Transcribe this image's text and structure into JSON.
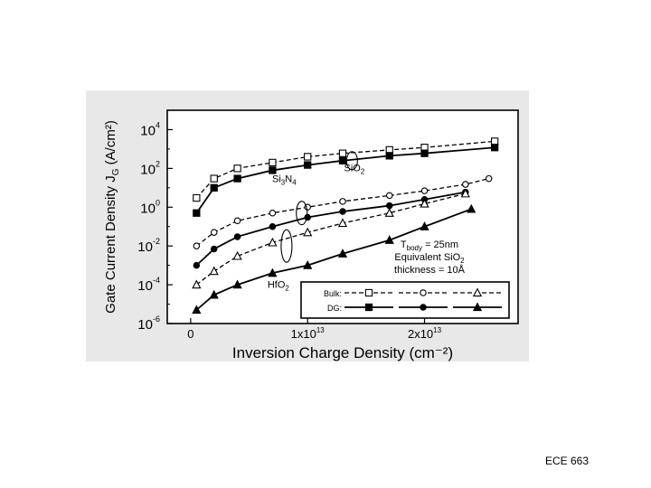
{
  "footer": {
    "text": "ECE 663"
  },
  "chart_data": {
    "type": "line",
    "xlabel": "Inversion Charge Density (cm⁻²)",
    "ylabel": "Gate Current Density J",
    "ylabel_sub": "G",
    "ylabel_unit": " (A/cm²)",
    "xlim": [
      -2000000000000.0,
      28000000000000.0
    ],
    "ylim_log10": [
      -6,
      5
    ],
    "xticks": [
      {
        "value": 0,
        "label": "0"
      },
      {
        "value": 10000000000000.0,
        "label": "1x10",
        "sup": "13"
      },
      {
        "value": 20000000000000.0,
        "label": "2x10",
        "sup": "13"
      }
    ],
    "yticks": [
      {
        "exp": 4,
        "label": "10",
        "sup": "4"
      },
      {
        "exp": 2,
        "label": "10",
        "sup": "2"
      },
      {
        "exp": 0,
        "label": "10",
        "sup": "0"
      },
      {
        "exp": -2,
        "label": "10",
        "sup": "-2"
      },
      {
        "exp": -4,
        "label": "10",
        "sup": "-4"
      },
      {
        "exp": -6,
        "label": "10",
        "sup": "-6"
      }
    ],
    "series": [
      {
        "name": "SiO2 Bulk",
        "marker": "square-open",
        "dash": true,
        "x": [
          500000000000.0,
          2000000000000.0,
          4000000000000.0,
          7000000000000.0,
          10000000000000.0,
          13000000000000.0,
          17000000000000.0,
          20000000000000.0,
          26000000000000.0
        ],
        "y": [
          3,
          30,
          100,
          200,
          400,
          600,
          900,
          1200,
          2500
        ]
      },
      {
        "name": "SiO2 DG",
        "marker": "square-filled",
        "dash": false,
        "x": [
          500000000000.0,
          2000000000000.0,
          4000000000000.0,
          7000000000000.0,
          10000000000000.0,
          13000000000000.0,
          17000000000000.0,
          20000000000000.0,
          26000000000000.0
        ],
        "y": [
          0.5,
          10,
          30,
          80,
          150,
          250,
          450,
          600,
          1200
        ]
      },
      {
        "name": "Si3N4 Bulk",
        "marker": "circle-open",
        "dash": true,
        "x": [
          500000000000.0,
          2000000000000.0,
          4000000000000.0,
          7000000000000.0,
          10000000000000.0,
          13000000000000.0,
          17000000000000.0,
          20000000000000.0,
          23500000000000.0,
          25500000000000.0
        ],
        "y": [
          0.01,
          0.05,
          0.2,
          0.5,
          1,
          2,
          4,
          7,
          15,
          30
        ]
      },
      {
        "name": "Si3N4 DG",
        "marker": "circle-filled",
        "dash": false,
        "x": [
          500000000000.0,
          2000000000000.0,
          4000000000000.0,
          7000000000000.0,
          10000000000000.0,
          13000000000000.0,
          17000000000000.0,
          20000000000000.0,
          23500000000000.0
        ],
        "y": [
          0.001,
          0.007,
          0.03,
          0.1,
          0.3,
          0.6,
          1.2,
          2.5,
          6
        ]
      },
      {
        "name": "HfO2 Bulk",
        "marker": "triangle-open",
        "dash": true,
        "x": [
          500000000000.0,
          2000000000000.0,
          4000000000000.0,
          7000000000000.0,
          10000000000000.0,
          13000000000000.0,
          17000000000000.0,
          20000000000000.0,
          23500000000000.0
        ],
        "y": [
          0.0001,
          0.0005,
          0.003,
          0.015,
          0.05,
          0.15,
          0.5,
          1.5,
          5
        ]
      },
      {
        "name": "HfO2 DG",
        "marker": "triangle-filled",
        "dash": false,
        "x": [
          500000000000.0,
          2000000000000.0,
          4000000000000.0,
          7000000000000.0,
          10000000000000.0,
          13000000000000.0,
          17000000000000.0,
          20000000000000.0,
          24000000000000.0
        ],
        "y": [
          5e-06,
          3e-05,
          0.0001,
          0.0004,
          0.001,
          0.004,
          0.02,
          0.1,
          0.8
        ]
      }
    ],
    "annotations": [
      {
        "name": "sio2",
        "main": "SiO",
        "sub": "2",
        "x": 14000000000000.0,
        "y": 70,
        "ellipse": {
          "x": 13800000000000.0,
          "y": 250
        }
      },
      {
        "name": "si3n4",
        "main": "Si",
        "sub": "3",
        "mid": "N",
        "sub2": "4",
        "x": 8000000000000.0,
        "y": 20,
        "ellipse": {
          "x": 9500000000000.0,
          "y": 0.5
        }
      },
      {
        "name": "hfo2",
        "main": "HfO",
        "sub": "2",
        "x": 7500000000000.0,
        "y": 7e-05,
        "ellipse": {
          "x": 8200000000000.0,
          "y": 0.01
        }
      }
    ],
    "info_lines": [
      {
        "main": "T",
        "sub": "body",
        "rest": " = 25nm"
      },
      {
        "main": "Equivalent SiO",
        "sub": "2",
        "rest": ""
      },
      {
        "main": "thickness = 10Å",
        "sub": "",
        "rest": ""
      }
    ],
    "legend": {
      "position": "bottom-right",
      "rows": [
        {
          "label": "Bulk:",
          "dash": true,
          "markers": [
            "square-open",
            "circle-open",
            "triangle-open"
          ]
        },
        {
          "label": "DG:",
          "dash": false,
          "markers": [
            "square-filled",
            "circle-filled",
            "triangle-filled"
          ]
        }
      ]
    }
  }
}
